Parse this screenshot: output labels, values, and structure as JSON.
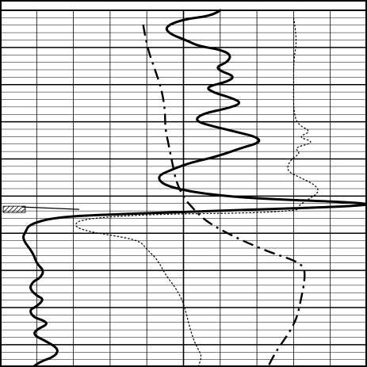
{
  "chart_data": {
    "type": "line",
    "title": "",
    "xlabel": "",
    "ylabel": "",
    "grid": true,
    "legend": "none",
    "ylim": [
      0,
      100
    ],
    "xlim": [
      0,
      100
    ],
    "series": [
      {
        "style": "solid-thick",
        "color": "#000000",
        "points": [
          [
            60,
            0
          ],
          [
            58,
            1.5
          ],
          [
            50,
            2.5
          ],
          [
            45,
            4.5
          ],
          [
            46,
            6.5
          ],
          [
            51,
            8.5
          ],
          [
            54,
            10
          ],
          [
            60,
            11
          ],
          [
            63,
            12.5
          ],
          [
            62,
            14.5
          ],
          [
            59,
            15.8
          ],
          [
            60,
            17
          ],
          [
            64,
            18.5
          ],
          [
            62,
            20
          ],
          [
            56,
            21.5
          ],
          [
            58,
            23
          ],
          [
            63,
            24.5
          ],
          [
            66,
            26
          ],
          [
            62,
            27.5
          ],
          [
            55,
            29
          ],
          [
            53,
            31
          ],
          [
            58,
            32.5
          ],
          [
            64,
            34
          ],
          [
            70,
            35.5
          ],
          [
            71,
            37
          ],
          [
            66,
            38.5
          ],
          [
            62,
            40
          ],
          [
            57,
            41.5
          ],
          [
            51,
            43
          ],
          [
            46,
            45
          ],
          [
            43,
            46.5
          ],
          [
            44,
            48.5
          ],
          [
            48,
            50
          ],
          [
            56,
            51.5
          ],
          [
            70,
            52.8
          ],
          [
            100,
            54
          ],
          [
            100,
            54.8
          ],
          [
            60,
            56.2
          ],
          [
            30,
            57.2
          ],
          [
            15,
            58
          ],
          [
            8,
            60
          ],
          [
            7,
            62
          ],
          [
            6,
            64
          ],
          [
            9,
            68
          ],
          [
            10,
            71
          ],
          [
            12,
            73
          ],
          [
            11,
            75
          ],
          [
            9,
            76
          ],
          [
            8,
            78
          ],
          [
            10,
            80
          ],
          [
            12,
            81
          ],
          [
            10,
            83
          ],
          [
            8,
            84
          ],
          [
            9,
            86
          ],
          [
            12,
            87
          ],
          [
            13,
            88
          ],
          [
            10,
            89.5
          ],
          [
            9,
            91
          ],
          [
            13,
            93
          ],
          [
            16,
            95
          ],
          [
            15,
            97
          ],
          [
            11,
            98.5
          ],
          [
            9,
            100
          ]
        ]
      },
      {
        "style": "dotted",
        "color": "#000000",
        "points": [
          [
            80,
            2
          ],
          [
            81,
            8
          ],
          [
            80,
            14
          ],
          [
            80,
            22
          ],
          [
            80,
            28
          ],
          [
            81,
            32
          ],
          [
            85,
            34
          ],
          [
            81,
            35.5
          ],
          [
            86,
            37
          ],
          [
            80,
            38.5
          ],
          [
            82,
            40
          ],
          [
            79,
            42
          ],
          [
            78,
            45
          ],
          [
            82,
            47
          ],
          [
            86,
            49
          ],
          [
            87,
            51
          ],
          [
            84,
            53
          ],
          [
            81,
            55
          ],
          [
            82,
            56
          ],
          [
            70,
            56.8
          ],
          [
            40,
            57.2
          ],
          [
            22,
            58.5
          ],
          [
            20,
            60.5
          ],
          [
            24,
            62
          ],
          [
            30,
            63
          ],
          [
            38,
            64.5
          ],
          [
            40,
            67
          ],
          [
            43,
            70
          ],
          [
            45,
            74
          ],
          [
            48,
            78
          ],
          [
            50,
            82
          ],
          [
            51,
            86
          ],
          [
            52,
            90
          ],
          [
            53,
            93
          ],
          [
            54,
            95
          ],
          [
            55,
            97
          ],
          [
            54,
            100
          ]
        ]
      },
      {
        "style": "dash-dot",
        "color": "#000000",
        "points": [
          [
            39,
            4
          ],
          [
            40,
            10
          ],
          [
            42,
            16
          ],
          [
            44,
            22
          ],
          [
            45,
            28
          ],
          [
            45,
            33
          ],
          [
            46,
            38
          ],
          [
            47,
            43
          ],
          [
            48,
            48
          ],
          [
            50,
            52.5
          ],
          [
            53,
            56
          ],
          [
            56,
            59
          ],
          [
            61,
            62
          ],
          [
            67,
            65
          ],
          [
            74,
            68
          ],
          [
            80,
            70
          ],
          [
            83,
            72
          ],
          [
            83,
            76
          ],
          [
            82,
            81
          ],
          [
            81,
            86
          ],
          [
            79,
            90
          ],
          [
            77,
            93
          ],
          [
            75,
            96
          ],
          [
            73,
            100
          ]
        ]
      }
    ],
    "annotations": [
      {
        "type": "hatched-marker",
        "y": 55.8
      }
    ]
  }
}
